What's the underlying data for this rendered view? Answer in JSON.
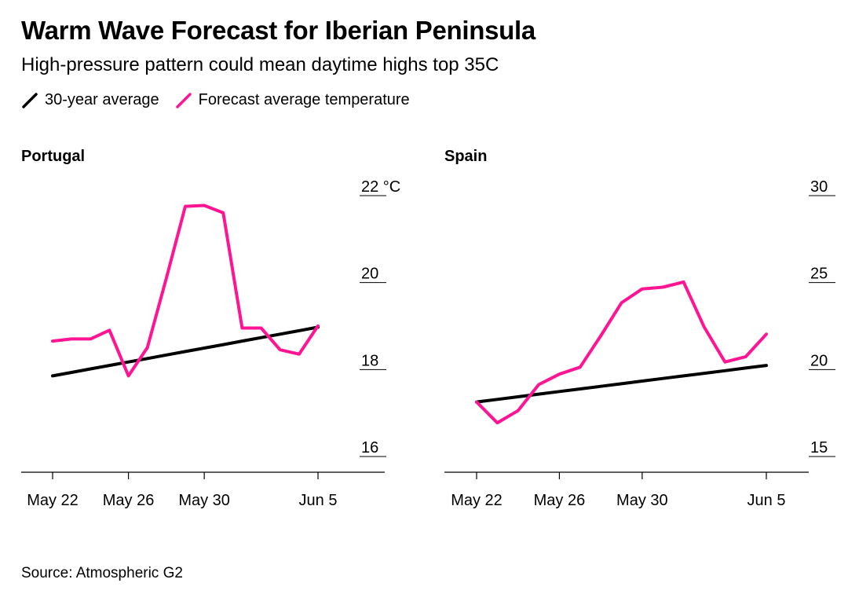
{
  "header": {
    "title": "Warm Wave Forecast for Iberian Peninsula",
    "subtitle": "High-pressure pattern could mean daytime highs top 35C"
  },
  "legend": [
    {
      "label": "30-year average",
      "color": "#000000"
    },
    {
      "label": "Forecast average temperature",
      "color": "#ff1493"
    }
  ],
  "footer": {
    "source": "Source: Atmospheric G2"
  },
  "chart_data": [
    {
      "type": "line",
      "title": "Portugal",
      "x": [
        "May 22",
        "May 23",
        "May 24",
        "May 25",
        "May 26",
        "May 27",
        "May 28",
        "May 29",
        "May 30",
        "May 31",
        "Jun 1",
        "Jun 2",
        "Jun 3",
        "Jun 4",
        "Jun 5"
      ],
      "series": [
        {
          "name": "30-year average",
          "color": "#000000",
          "values": [
            17.8,
            17.88,
            17.96,
            18.04,
            18.12,
            18.2,
            18.28,
            18.36,
            18.44,
            18.52,
            18.6,
            18.68,
            18.76,
            18.84,
            18.92
          ]
        },
        {
          "name": "Forecast average temperature",
          "color": "#ff1493",
          "values": [
            18.6,
            18.65,
            18.65,
            18.85,
            17.8,
            18.45,
            20.05,
            21.7,
            21.72,
            21.55,
            18.9,
            18.9,
            18.4,
            18.3,
            18.95
          ]
        }
      ],
      "ylim": [
        16,
        22
      ],
      "yticks": [
        16,
        18,
        20,
        22
      ],
      "ytick_labels": [
        "16",
        "18",
        "20",
        "22 °C"
      ],
      "xticks": [
        "May 22",
        "May 26",
        "May 30",
        "Jun 5"
      ],
      "grid": false
    },
    {
      "type": "line",
      "title": "Spain",
      "x": [
        "May 22",
        "May 23",
        "May 24",
        "May 25",
        "May 26",
        "May 27",
        "May 28",
        "May 29",
        "May 30",
        "May 31",
        "Jun 1",
        "Jun 2",
        "Jun 3",
        "Jun 4",
        "Jun 5"
      ],
      "series": [
        {
          "name": "30-year average",
          "color": "#000000",
          "values": [
            18.0,
            18.15,
            18.3,
            18.45,
            18.6,
            18.75,
            18.9,
            19.05,
            19.2,
            19.35,
            19.5,
            19.65,
            19.8,
            19.95,
            20.1
          ]
        },
        {
          "name": "Forecast average temperature",
          "color": "#ff1493",
          "values": [
            18.0,
            16.8,
            17.5,
            19.0,
            19.6,
            20.0,
            21.8,
            23.7,
            24.5,
            24.6,
            24.9,
            22.3,
            20.3,
            20.6,
            21.9
          ]
        }
      ],
      "ylim": [
        15,
        30
      ],
      "yticks": [
        15,
        20,
        25,
        30
      ],
      "ytick_labels": [
        "15",
        "20",
        "25",
        "30"
      ],
      "xticks": [
        "May 22",
        "May 26",
        "May 30",
        "Jun 5"
      ],
      "grid": false
    }
  ]
}
